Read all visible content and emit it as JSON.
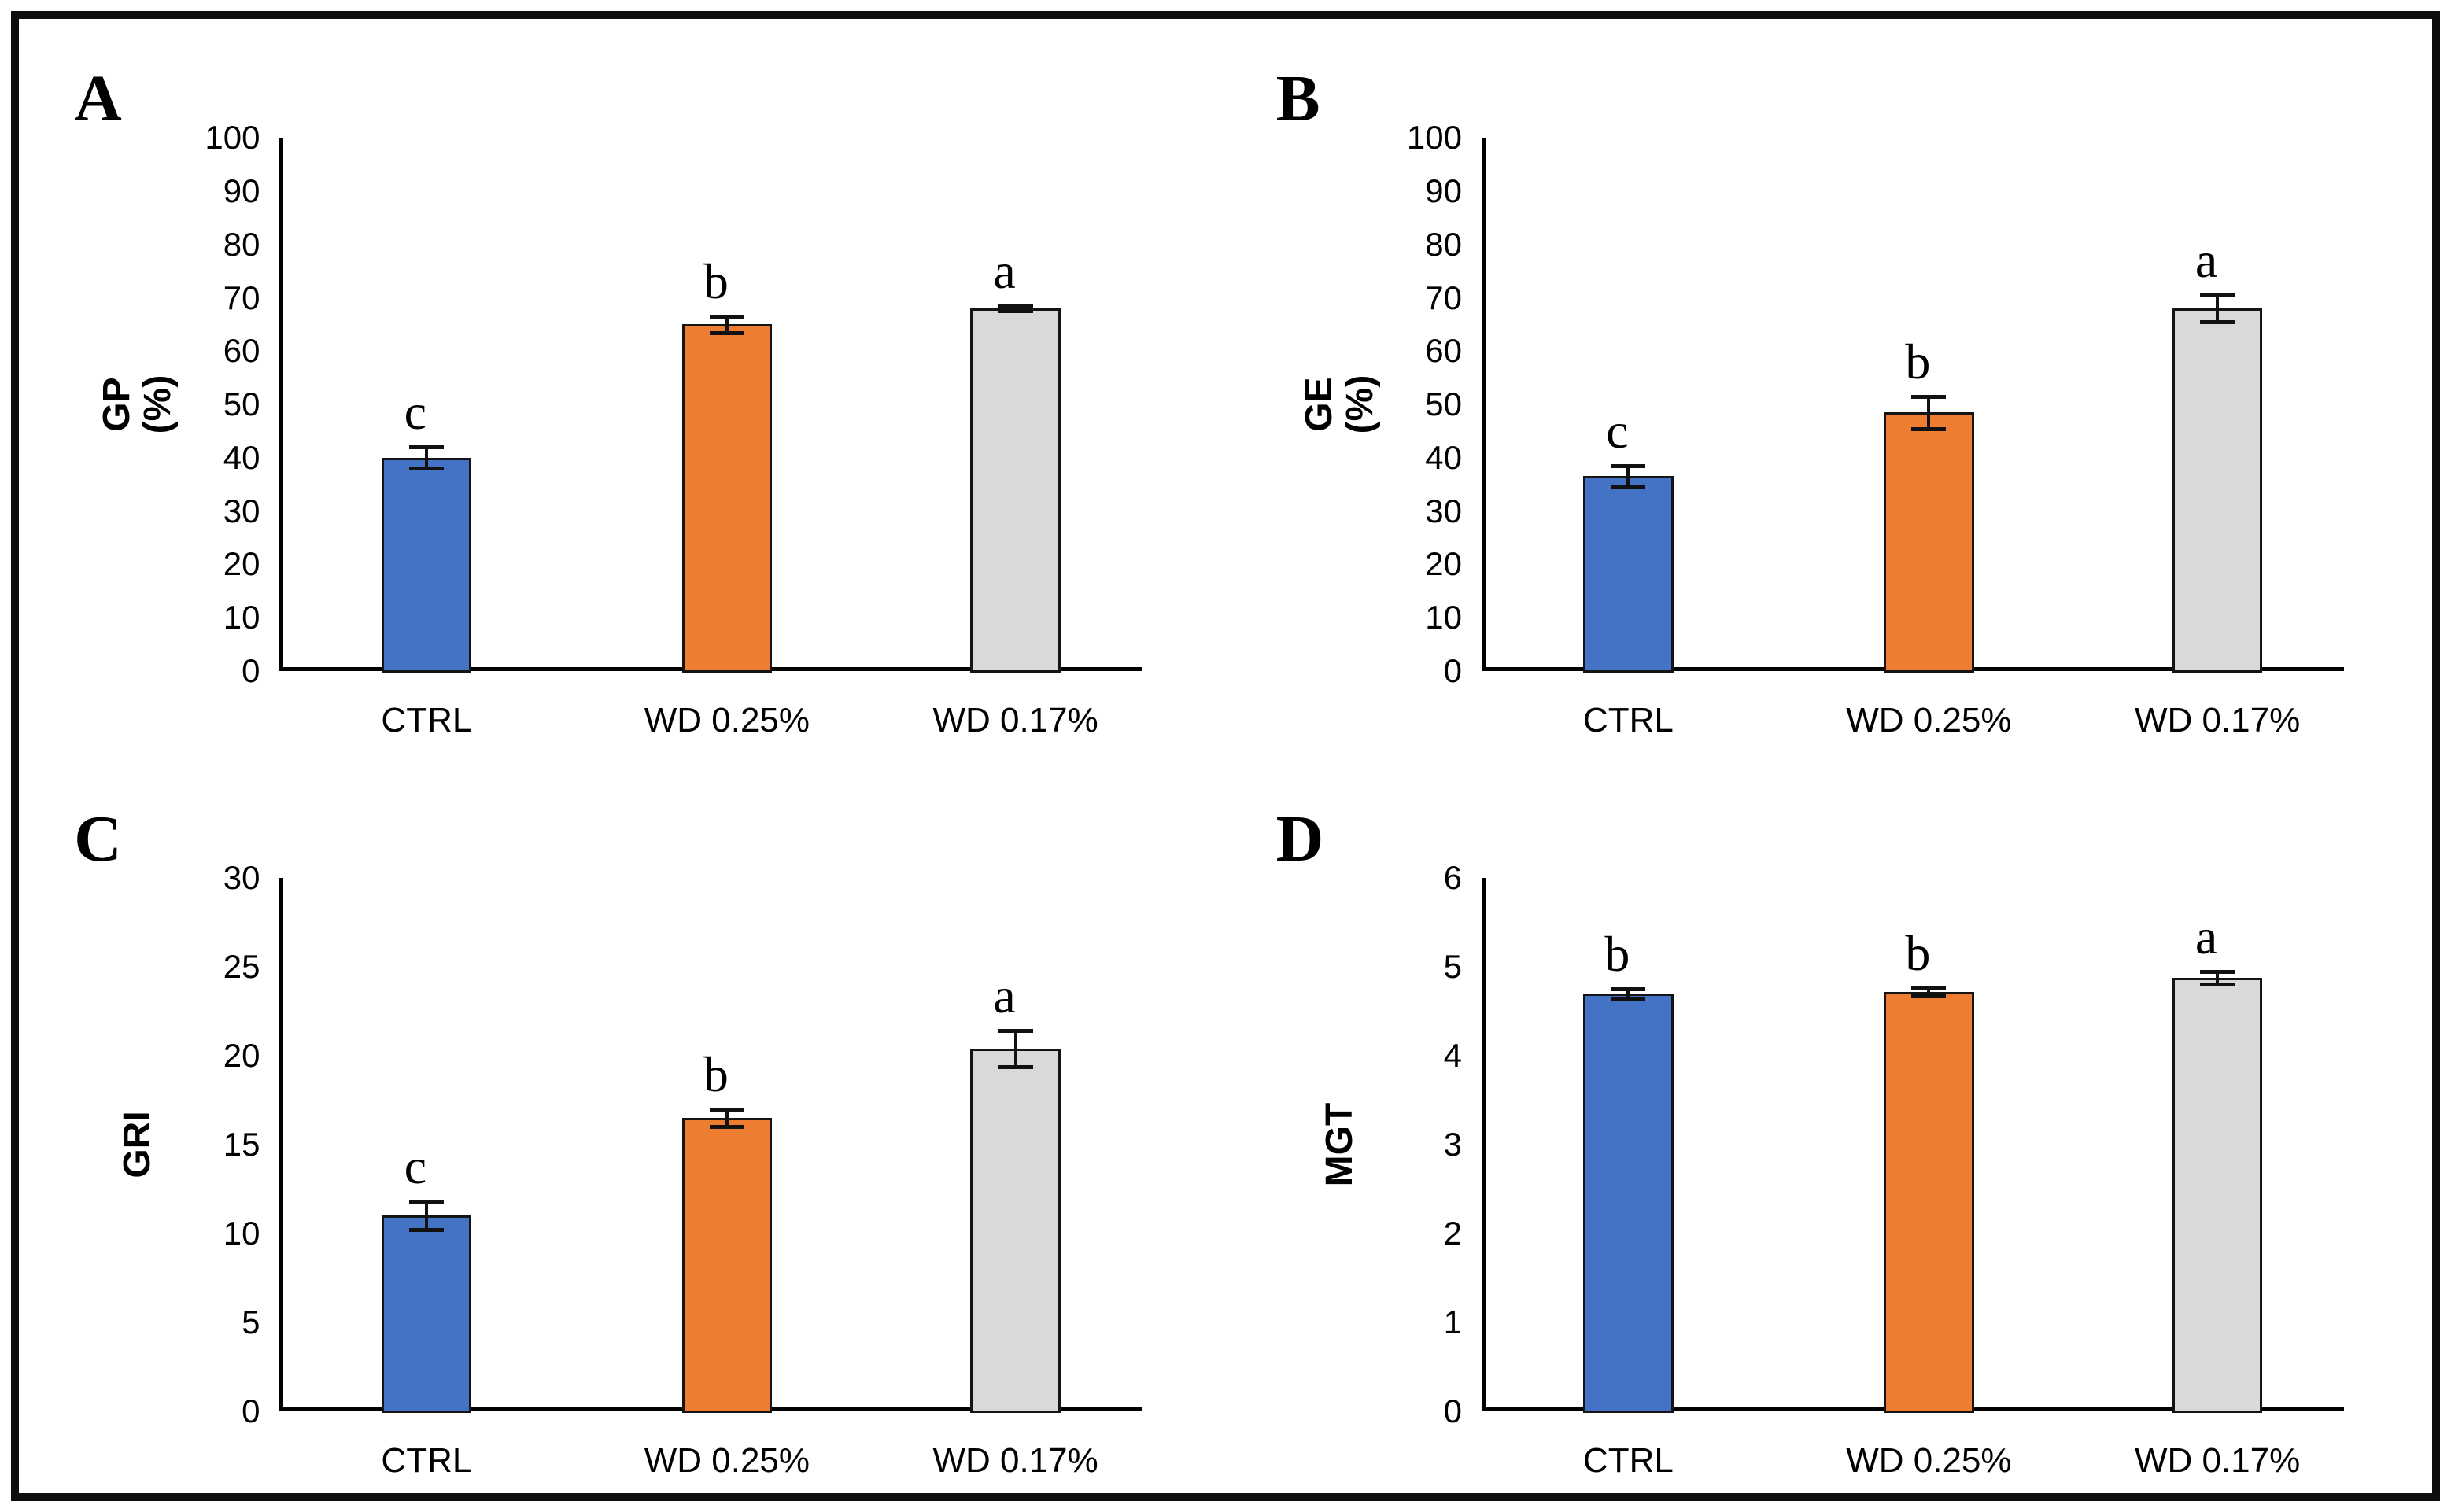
{
  "figure": {
    "background": "#ffffff",
    "frame_border_color": "#0d0d0d",
    "axis_color": "#000000",
    "bar_border_color": "#141414",
    "series_colors": [
      "#4472C4",
      "#ED7D31",
      "#D9D9D9"
    ]
  },
  "chart_data": [
    {
      "type": "bar",
      "panel": "A",
      "ylabel": "GP (%)",
      "ylabel_lines": [
        "GP",
        "(%)"
      ],
      "categories": [
        "CTRL",
        "WD 0.25%",
        "WD 0.17%"
      ],
      "values": [
        40,
        65,
        68
      ],
      "errors": [
        2,
        1.5,
        0.5
      ],
      "sig_letters": [
        "c",
        "b",
        "a"
      ],
      "ylim": [
        0,
        100
      ],
      "ystep": 10,
      "yticks": [
        0,
        10,
        20,
        30,
        40,
        50,
        60,
        70,
        80,
        90,
        100
      ],
      "bar_colors": [
        "#4472C4",
        "#ED7D31",
        "#D9D9D9"
      ],
      "grid": false,
      "legend": false
    },
    {
      "type": "bar",
      "panel": "B",
      "ylabel": "GE (%)",
      "ylabel_lines": [
        "GE",
        "(%)"
      ],
      "categories": [
        "CTRL",
        "WD 0.25%",
        "WD 0.17%"
      ],
      "values": [
        36.5,
        48.5,
        68
      ],
      "errors": [
        2,
        3,
        2.5
      ],
      "sig_letters": [
        "c",
        "b",
        "a"
      ],
      "ylim": [
        0,
        100
      ],
      "ystep": 10,
      "yticks": [
        0,
        10,
        20,
        30,
        40,
        50,
        60,
        70,
        80,
        90,
        100
      ],
      "bar_colors": [
        "#4472C4",
        "#ED7D31",
        "#D9D9D9"
      ],
      "grid": false,
      "legend": false
    },
    {
      "type": "bar",
      "panel": "C",
      "ylabel": "GRI",
      "ylabel_lines": [
        "GRI"
      ],
      "categories": [
        "CTRL",
        "WD 0.25%",
        "WD 0.17%"
      ],
      "values": [
        11,
        16.5,
        20.4
      ],
      "errors": [
        0.8,
        0.5,
        1.0
      ],
      "sig_letters": [
        "c",
        "b",
        "a"
      ],
      "ylim": [
        0,
        30
      ],
      "ystep": 5,
      "yticks": [
        0,
        5,
        10,
        15,
        20,
        25,
        30
      ],
      "bar_colors": [
        "#4472C4",
        "#ED7D31",
        "#D9D9D9"
      ],
      "grid": false,
      "legend": false
    },
    {
      "type": "bar",
      "panel": "D",
      "ylabel": "MGT",
      "ylabel_lines": [
        "MGT"
      ],
      "categories": [
        "CTRL",
        "WD 0.25%",
        "WD 0.17%"
      ],
      "values": [
        4.7,
        4.72,
        4.88
      ],
      "errors": [
        0.05,
        0.04,
        0.07
      ],
      "sig_letters": [
        "b",
        "b",
        "a"
      ],
      "ylim": [
        0,
        6
      ],
      "ystep": 1,
      "yticks": [
        0,
        1,
        2,
        3,
        4,
        5,
        6
      ],
      "bar_colors": [
        "#4472C4",
        "#ED7D31",
        "#D9D9D9"
      ],
      "grid": false,
      "legend": false
    }
  ]
}
